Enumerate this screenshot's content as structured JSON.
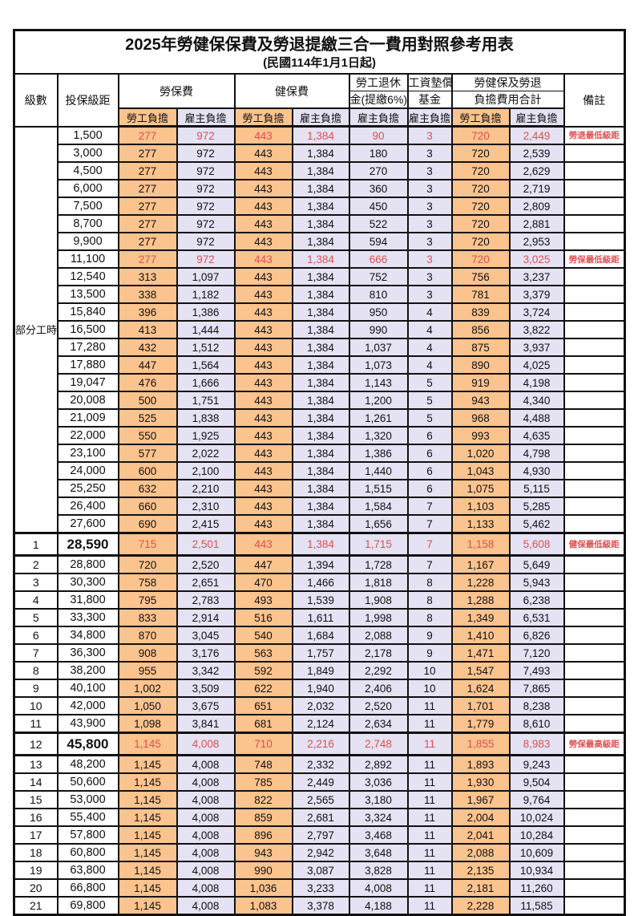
{
  "page": {
    "title": "2025年勞健保保費及勞退提繳三合一費用對照參考用表",
    "subtitle": "(民國114年1月1日起)"
  },
  "colors": {
    "employee_bg": "#FBC38E",
    "employer_bg": "#E4E2F3",
    "highlight_text": "#E05050",
    "border": "#111111"
  },
  "header": {
    "level": "級數",
    "bracket": "投保級距",
    "labor_insurance": "勞保費",
    "health_insurance": "健保費",
    "pension_line1": "勞工退休",
    "pension_line2": "金(提繳6%)",
    "wage_fund_line1": "工資墊償",
    "wage_fund_line2": "基金",
    "total_line1": "勞健保及勞退",
    "total_line2": "負擔費用合計",
    "remark": "備註",
    "employee": "勞工負擔",
    "employer": "雇主負擔"
  },
  "table": {
    "part_time_label": "部分工時",
    "part_time_rowspan": 23,
    "rows": [
      {
        "level": "",
        "bracket": "1,500",
        "values": [
          "277",
          "972",
          "443",
          "1,384",
          "90",
          "3",
          "720",
          "2,449"
        ],
        "remark": "勞退最低級距",
        "red": true,
        "emphasis": false
      },
      {
        "level": "",
        "bracket": "3,000",
        "values": [
          "277",
          "972",
          "443",
          "1,384",
          "180",
          "3",
          "720",
          "2,539"
        ],
        "remark": "",
        "red": false,
        "emphasis": false
      },
      {
        "level": "",
        "bracket": "4,500",
        "values": [
          "277",
          "972",
          "443",
          "1,384",
          "270",
          "3",
          "720",
          "2,629"
        ],
        "remark": "",
        "red": false,
        "emphasis": false
      },
      {
        "level": "",
        "bracket": "6,000",
        "values": [
          "277",
          "972",
          "443",
          "1,384",
          "360",
          "3",
          "720",
          "2,719"
        ],
        "remark": "",
        "red": false,
        "emphasis": false
      },
      {
        "level": "",
        "bracket": "7,500",
        "values": [
          "277",
          "972",
          "443",
          "1,384",
          "450",
          "3",
          "720",
          "2,809"
        ],
        "remark": "",
        "red": false,
        "emphasis": false
      },
      {
        "level": "",
        "bracket": "8,700",
        "values": [
          "277",
          "972",
          "443",
          "1,384",
          "522",
          "3",
          "720",
          "2,881"
        ],
        "remark": "",
        "red": false,
        "emphasis": false
      },
      {
        "level": "",
        "bracket": "9,900",
        "values": [
          "277",
          "972",
          "443",
          "1,384",
          "594",
          "3",
          "720",
          "2,953"
        ],
        "remark": "",
        "red": false,
        "emphasis": false
      },
      {
        "level": "",
        "bracket": "11,100",
        "values": [
          "277",
          "972",
          "443",
          "1,384",
          "666",
          "3",
          "720",
          "3,025"
        ],
        "remark": "勞保最低級距",
        "red": true,
        "emphasis": false
      },
      {
        "level": "",
        "bracket": "12,540",
        "values": [
          "313",
          "1,097",
          "443",
          "1,384",
          "752",
          "3",
          "756",
          "3,237"
        ],
        "remark": "",
        "red": false,
        "emphasis": false
      },
      {
        "level": "",
        "bracket": "13,500",
        "values": [
          "338",
          "1,182",
          "443",
          "1,384",
          "810",
          "3",
          "781",
          "3,379"
        ],
        "remark": "",
        "red": false,
        "emphasis": false
      },
      {
        "level": "",
        "bracket": "15,840",
        "values": [
          "396",
          "1,386",
          "443",
          "1,384",
          "950",
          "4",
          "839",
          "3,724"
        ],
        "remark": "",
        "red": false,
        "emphasis": false
      },
      {
        "level": "",
        "bracket": "16,500",
        "values": [
          "413",
          "1,444",
          "443",
          "1,384",
          "990",
          "4",
          "856",
          "3,822"
        ],
        "remark": "",
        "red": false,
        "emphasis": false
      },
      {
        "level": "",
        "bracket": "17,280",
        "values": [
          "432",
          "1,512",
          "443",
          "1,384",
          "1,037",
          "4",
          "875",
          "3,937"
        ],
        "remark": "",
        "red": false,
        "emphasis": false
      },
      {
        "level": "",
        "bracket": "17,880",
        "values": [
          "447",
          "1,564",
          "443",
          "1,384",
          "1,073",
          "4",
          "890",
          "4,025"
        ],
        "remark": "",
        "red": false,
        "emphasis": false
      },
      {
        "level": "",
        "bracket": "19,047",
        "values": [
          "476",
          "1,666",
          "443",
          "1,384",
          "1,143",
          "5",
          "919",
          "4,198"
        ],
        "remark": "",
        "red": false,
        "emphasis": false
      },
      {
        "level": "",
        "bracket": "20,008",
        "values": [
          "500",
          "1,751",
          "443",
          "1,384",
          "1,200",
          "5",
          "943",
          "4,340"
        ],
        "remark": "",
        "red": false,
        "emphasis": false
      },
      {
        "level": "",
        "bracket": "21,009",
        "values": [
          "525",
          "1,838",
          "443",
          "1,384",
          "1,261",
          "5",
          "968",
          "4,488"
        ],
        "remark": "",
        "red": false,
        "emphasis": false
      },
      {
        "level": "",
        "bracket": "22,000",
        "values": [
          "550",
          "1,925",
          "443",
          "1,384",
          "1,320",
          "6",
          "993",
          "4,635"
        ],
        "remark": "",
        "red": false,
        "emphasis": false
      },
      {
        "level": "",
        "bracket": "23,100",
        "values": [
          "577",
          "2,022",
          "443",
          "1,384",
          "1,386",
          "6",
          "1,020",
          "4,798"
        ],
        "remark": "",
        "red": false,
        "emphasis": false
      },
      {
        "level": "",
        "bracket": "24,000",
        "values": [
          "600",
          "2,100",
          "443",
          "1,384",
          "1,440",
          "6",
          "1,043",
          "4,930"
        ],
        "remark": "",
        "red": false,
        "emphasis": false
      },
      {
        "level": "",
        "bracket": "25,250",
        "values": [
          "632",
          "2,210",
          "443",
          "1,384",
          "1,515",
          "6",
          "1,075",
          "5,115"
        ],
        "remark": "",
        "red": false,
        "emphasis": false
      },
      {
        "level": "",
        "bracket": "26,400",
        "values": [
          "660",
          "2,310",
          "443",
          "1,384",
          "1,584",
          "7",
          "1,103",
          "5,285"
        ],
        "remark": "",
        "red": false,
        "emphasis": false
      },
      {
        "level": "",
        "bracket": "27,600",
        "values": [
          "690",
          "2,415",
          "443",
          "1,384",
          "1,656",
          "7",
          "1,133",
          "5,462"
        ],
        "remark": "",
        "red": false,
        "emphasis": false
      },
      {
        "level": "1",
        "bracket": "28,590",
        "values": [
          "715",
          "2,501",
          "443",
          "1,384",
          "1,715",
          "7",
          "1,158",
          "5,608"
        ],
        "remark": "健保最低級距",
        "red": true,
        "emphasis": true
      },
      {
        "level": "2",
        "bracket": "28,800",
        "values": [
          "720",
          "2,520",
          "447",
          "1,394",
          "1,728",
          "7",
          "1,167",
          "5,649"
        ],
        "remark": "",
        "red": false,
        "emphasis": false
      },
      {
        "level": "3",
        "bracket": "30,300",
        "values": [
          "758",
          "2,651",
          "470",
          "1,466",
          "1,818",
          "8",
          "1,228",
          "5,943"
        ],
        "remark": "",
        "red": false,
        "emphasis": false
      },
      {
        "level": "4",
        "bracket": "31,800",
        "values": [
          "795",
          "2,783",
          "493",
          "1,539",
          "1,908",
          "8",
          "1,288",
          "6,238"
        ],
        "remark": "",
        "red": false,
        "emphasis": false
      },
      {
        "level": "5",
        "bracket": "33,300",
        "values": [
          "833",
          "2,914",
          "516",
          "1,611",
          "1,998",
          "8",
          "1,349",
          "6,531"
        ],
        "remark": "",
        "red": false,
        "emphasis": false
      },
      {
        "level": "6",
        "bracket": "34,800",
        "values": [
          "870",
          "3,045",
          "540",
          "1,684",
          "2,088",
          "9",
          "1,410",
          "6,826"
        ],
        "remark": "",
        "red": false,
        "emphasis": false
      },
      {
        "level": "7",
        "bracket": "36,300",
        "values": [
          "908",
          "3,176",
          "563",
          "1,757",
          "2,178",
          "9",
          "1,471",
          "7,120"
        ],
        "remark": "",
        "red": false,
        "emphasis": false
      },
      {
        "level": "8",
        "bracket": "38,200",
        "values": [
          "955",
          "3,342",
          "592",
          "1,849",
          "2,292",
          "10",
          "1,547",
          "7,493"
        ],
        "remark": "",
        "red": false,
        "emphasis": false
      },
      {
        "level": "9",
        "bracket": "40,100",
        "values": [
          "1,002",
          "3,509",
          "622",
          "1,940",
          "2,406",
          "10",
          "1,624",
          "7,865"
        ],
        "remark": "",
        "red": false,
        "emphasis": false
      },
      {
        "level": "10",
        "bracket": "42,000",
        "values": [
          "1,050",
          "3,675",
          "651",
          "2,032",
          "2,520",
          "11",
          "1,701",
          "8,238"
        ],
        "remark": "",
        "red": false,
        "emphasis": false
      },
      {
        "level": "11",
        "bracket": "43,900",
        "values": [
          "1,098",
          "3,841",
          "681",
          "2,124",
          "2,634",
          "11",
          "1,779",
          "8,610"
        ],
        "remark": "",
        "red": false,
        "emphasis": false
      },
      {
        "level": "12",
        "bracket": "45,800",
        "values": [
          "1,145",
          "4,008",
          "710",
          "2,216",
          "2,748",
          "11",
          "1,855",
          "8,983"
        ],
        "remark": "勞保最高級距",
        "red": true,
        "emphasis": true
      },
      {
        "level": "13",
        "bracket": "48,200",
        "values": [
          "1,145",
          "4,008",
          "748",
          "2,332",
          "2,892",
          "11",
          "1,893",
          "9,243"
        ],
        "remark": "",
        "red": false,
        "emphasis": false
      },
      {
        "level": "14",
        "bracket": "50,600",
        "values": [
          "1,145",
          "4,008",
          "785",
          "2,449",
          "3,036",
          "11",
          "1,930",
          "9,504"
        ],
        "remark": "",
        "red": false,
        "emphasis": false
      },
      {
        "level": "15",
        "bracket": "53,000",
        "values": [
          "1,145",
          "4,008",
          "822",
          "2,565",
          "3,180",
          "11",
          "1,967",
          "9,764"
        ],
        "remark": "",
        "red": false,
        "emphasis": false
      },
      {
        "level": "16",
        "bracket": "55,400",
        "values": [
          "1,145",
          "4,008",
          "859",
          "2,681",
          "3,324",
          "11",
          "2,004",
          "10,024"
        ],
        "remark": "",
        "red": false,
        "emphasis": false
      },
      {
        "level": "17",
        "bracket": "57,800",
        "values": [
          "1,145",
          "4,008",
          "896",
          "2,797",
          "3,468",
          "11",
          "2,041",
          "10,284"
        ],
        "remark": "",
        "red": false,
        "emphasis": false
      },
      {
        "level": "18",
        "bracket": "60,800",
        "values": [
          "1,145",
          "4,008",
          "943",
          "2,942",
          "3,648",
          "11",
          "2,088",
          "10,609"
        ],
        "remark": "",
        "red": false,
        "emphasis": false
      },
      {
        "level": "19",
        "bracket": "63,800",
        "values": [
          "1,145",
          "4,008",
          "990",
          "3,087",
          "3,828",
          "11",
          "2,135",
          "10,934"
        ],
        "remark": "",
        "red": false,
        "emphasis": false
      },
      {
        "level": "20",
        "bracket": "66,800",
        "values": [
          "1,145",
          "4,008",
          "1,036",
          "3,233",
          "4,008",
          "11",
          "2,181",
          "11,260"
        ],
        "remark": "",
        "red": false,
        "emphasis": false
      },
      {
        "level": "21",
        "bracket": "69,800",
        "values": [
          "1,145",
          "4,008",
          "1,083",
          "3,378",
          "4,188",
          "11",
          "2,228",
          "11,585"
        ],
        "remark": "",
        "red": false,
        "emphasis": false
      }
    ]
  }
}
